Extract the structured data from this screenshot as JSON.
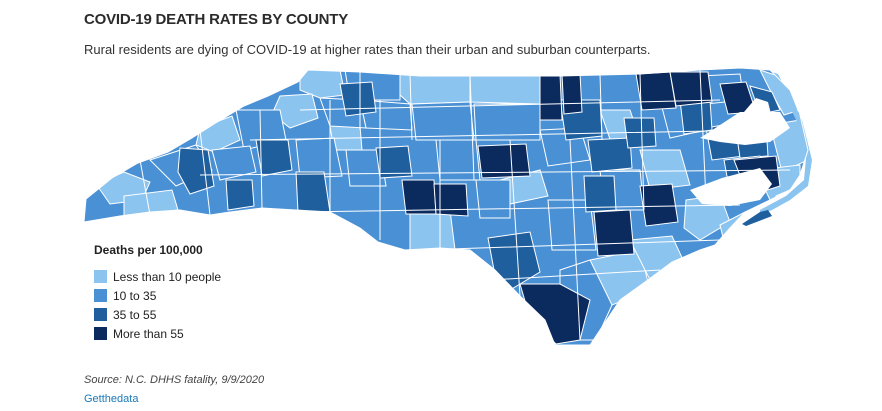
{
  "header": {
    "title": "COVID-19 DEATH RATES  BY COUNTY",
    "subtitle": "Rural residents are dying of COVID-19 at higher rates than their urban and suburban counterparts."
  },
  "legend": {
    "title": "Deaths per 100,000",
    "items": [
      {
        "label": "Less than 10 people",
        "color": "#8cc4f0"
      },
      {
        "label": "10 to 35",
        "color": "#4a90d4"
      },
      {
        "label": "35 to 55",
        "color": "#1f5f9e"
      },
      {
        "label": "More than 55",
        "color": "#0b2a5e"
      }
    ]
  },
  "map": {
    "region": "North Carolina",
    "outline_color": "#ffffff",
    "water_color": "#ffffff"
  },
  "footer": {
    "source": "Source: N.C. DHHS fatality, 9/9/2020",
    "credit": "Getthedata"
  }
}
